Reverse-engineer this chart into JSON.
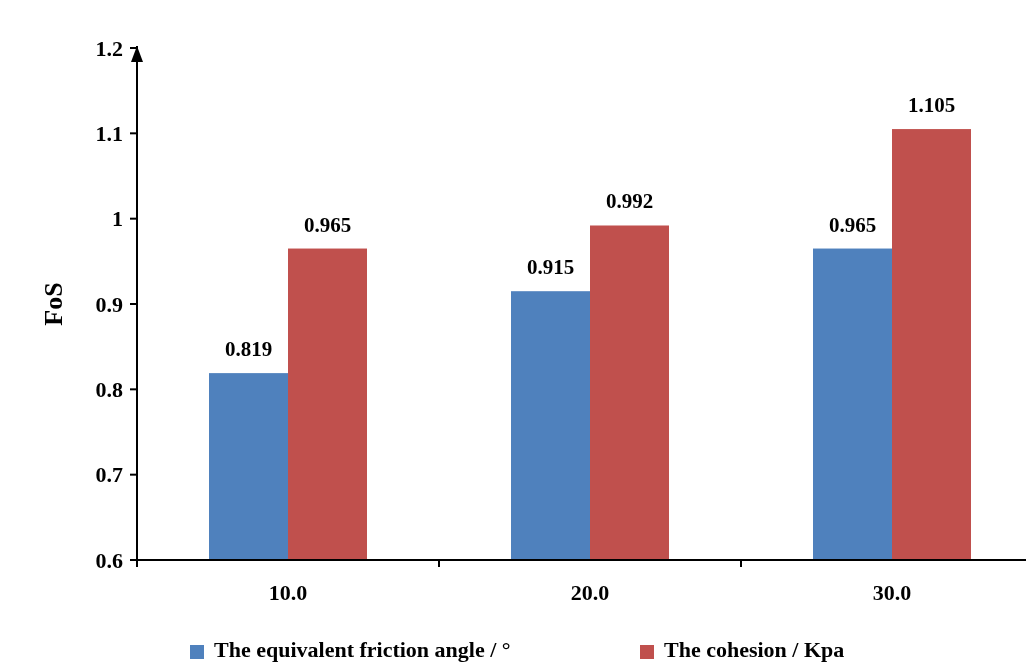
{
  "chart_data": {
    "type": "bar",
    "ylabel": "FoS",
    "categories": [
      "10.0",
      "20.0",
      "30.0"
    ],
    "series": [
      {
        "name": "The equivalent friction angle / °",
        "color": "#4f81bd",
        "values": [
          0.819,
          0.915,
          0.965
        ]
      },
      {
        "name": "The cohesion / Kpa",
        "color": "#c0504d",
        "values": [
          0.965,
          0.992,
          1.105
        ]
      }
    ],
    "ylim": [
      0.6,
      1.2
    ],
    "yticks": [
      0.6,
      0.7,
      0.8,
      0.9,
      1,
      1.1,
      1.2
    ],
    "data_labels": true,
    "legend": "bottom",
    "grid": false
  }
}
